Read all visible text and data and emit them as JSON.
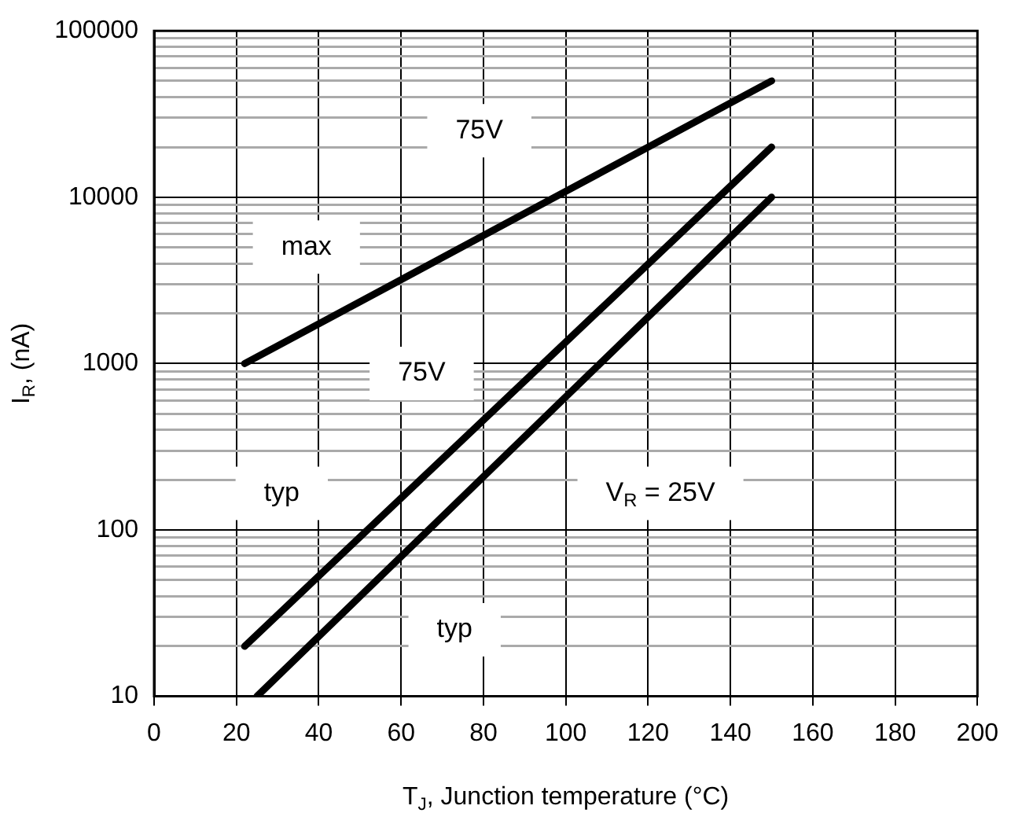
{
  "chart_data": {
    "type": "line",
    "xlabel": "T$_{J}$, Junction temperature (°C)",
    "ylabel": "I$_{R}$, (nA)",
    "series": [
      {
        "color": "#000000",
        "x": [
          22,
          150
        ],
        "values": [
          1000,
          50000
        ]
      },
      {
        "color": "#000000",
        "x": [
          22,
          150
        ],
        "values": [
          20,
          20000
        ]
      },
      {
        "color": "#000000",
        "x": [
          25,
          150
        ],
        "values": [
          10,
          10000
        ]
      }
    ],
    "log": "y",
    "grid": true,
    "marker": "none",
    "line_style": "solid",
    "xlim": [
      0,
      200
    ],
    "xticks": [
      0,
      20,
      40,
      60,
      80,
      100,
      120,
      140,
      160,
      180,
      200
    ],
    "ylim": [
      10,
      100000
    ],
    "yticks": [
      10,
      {
        "value": 20,
        "label": null
      },
      {
        "value": 30,
        "label": null
      },
      {
        "value": 40,
        "label": null
      },
      {
        "value": 50,
        "label": null
      },
      {
        "value": 60,
        "label": null
      },
      {
        "value": 70,
        "label": null
      },
      {
        "value": 80,
        "label": null
      },
      {
        "value": 90,
        "label": null
      },
      100,
      {
        "value": 200,
        "label": null
      },
      {
        "value": 300,
        "label": null
      },
      {
        "value": 400,
        "label": null
      },
      {
        "value": 500,
        "label": null
      },
      {
        "value": 600,
        "label": null
      },
      {
        "value": 700,
        "label": null
      },
      {
        "value": 800,
        "label": null
      },
      {
        "value": 900,
        "label": null
      },
      1000,
      {
        "value": 2000,
        "label": null
      },
      {
        "value": 3000,
        "label": null
      },
      {
        "value": 4000,
        "label": null
      },
      {
        "value": 5000,
        "label": null
      },
      {
        "value": 6000,
        "label": null
      },
      {
        "value": 7000,
        "label": null
      },
      {
        "value": 8000,
        "label": null
      },
      {
        "value": 9000,
        "label": null
      },
      10000,
      {
        "value": 20000,
        "label": null
      },
      {
        "value": 30000,
        "label": null
      },
      {
        "value": 40000,
        "label": null
      },
      {
        "value": 50000,
        "label": null
      },
      {
        "value": 60000,
        "label": null
      },
      {
        "value": 70000,
        "label": null
      },
      {
        "value": 80000,
        "label": null
      },
      {
        "value": 90000,
        "label": null
      },
      100000
    ],
    "annotations": [
      "75V",
      "max",
      "75V",
      "typ",
      "V$_{R}$ = 25V",
      "typ"
    ]
  }
}
